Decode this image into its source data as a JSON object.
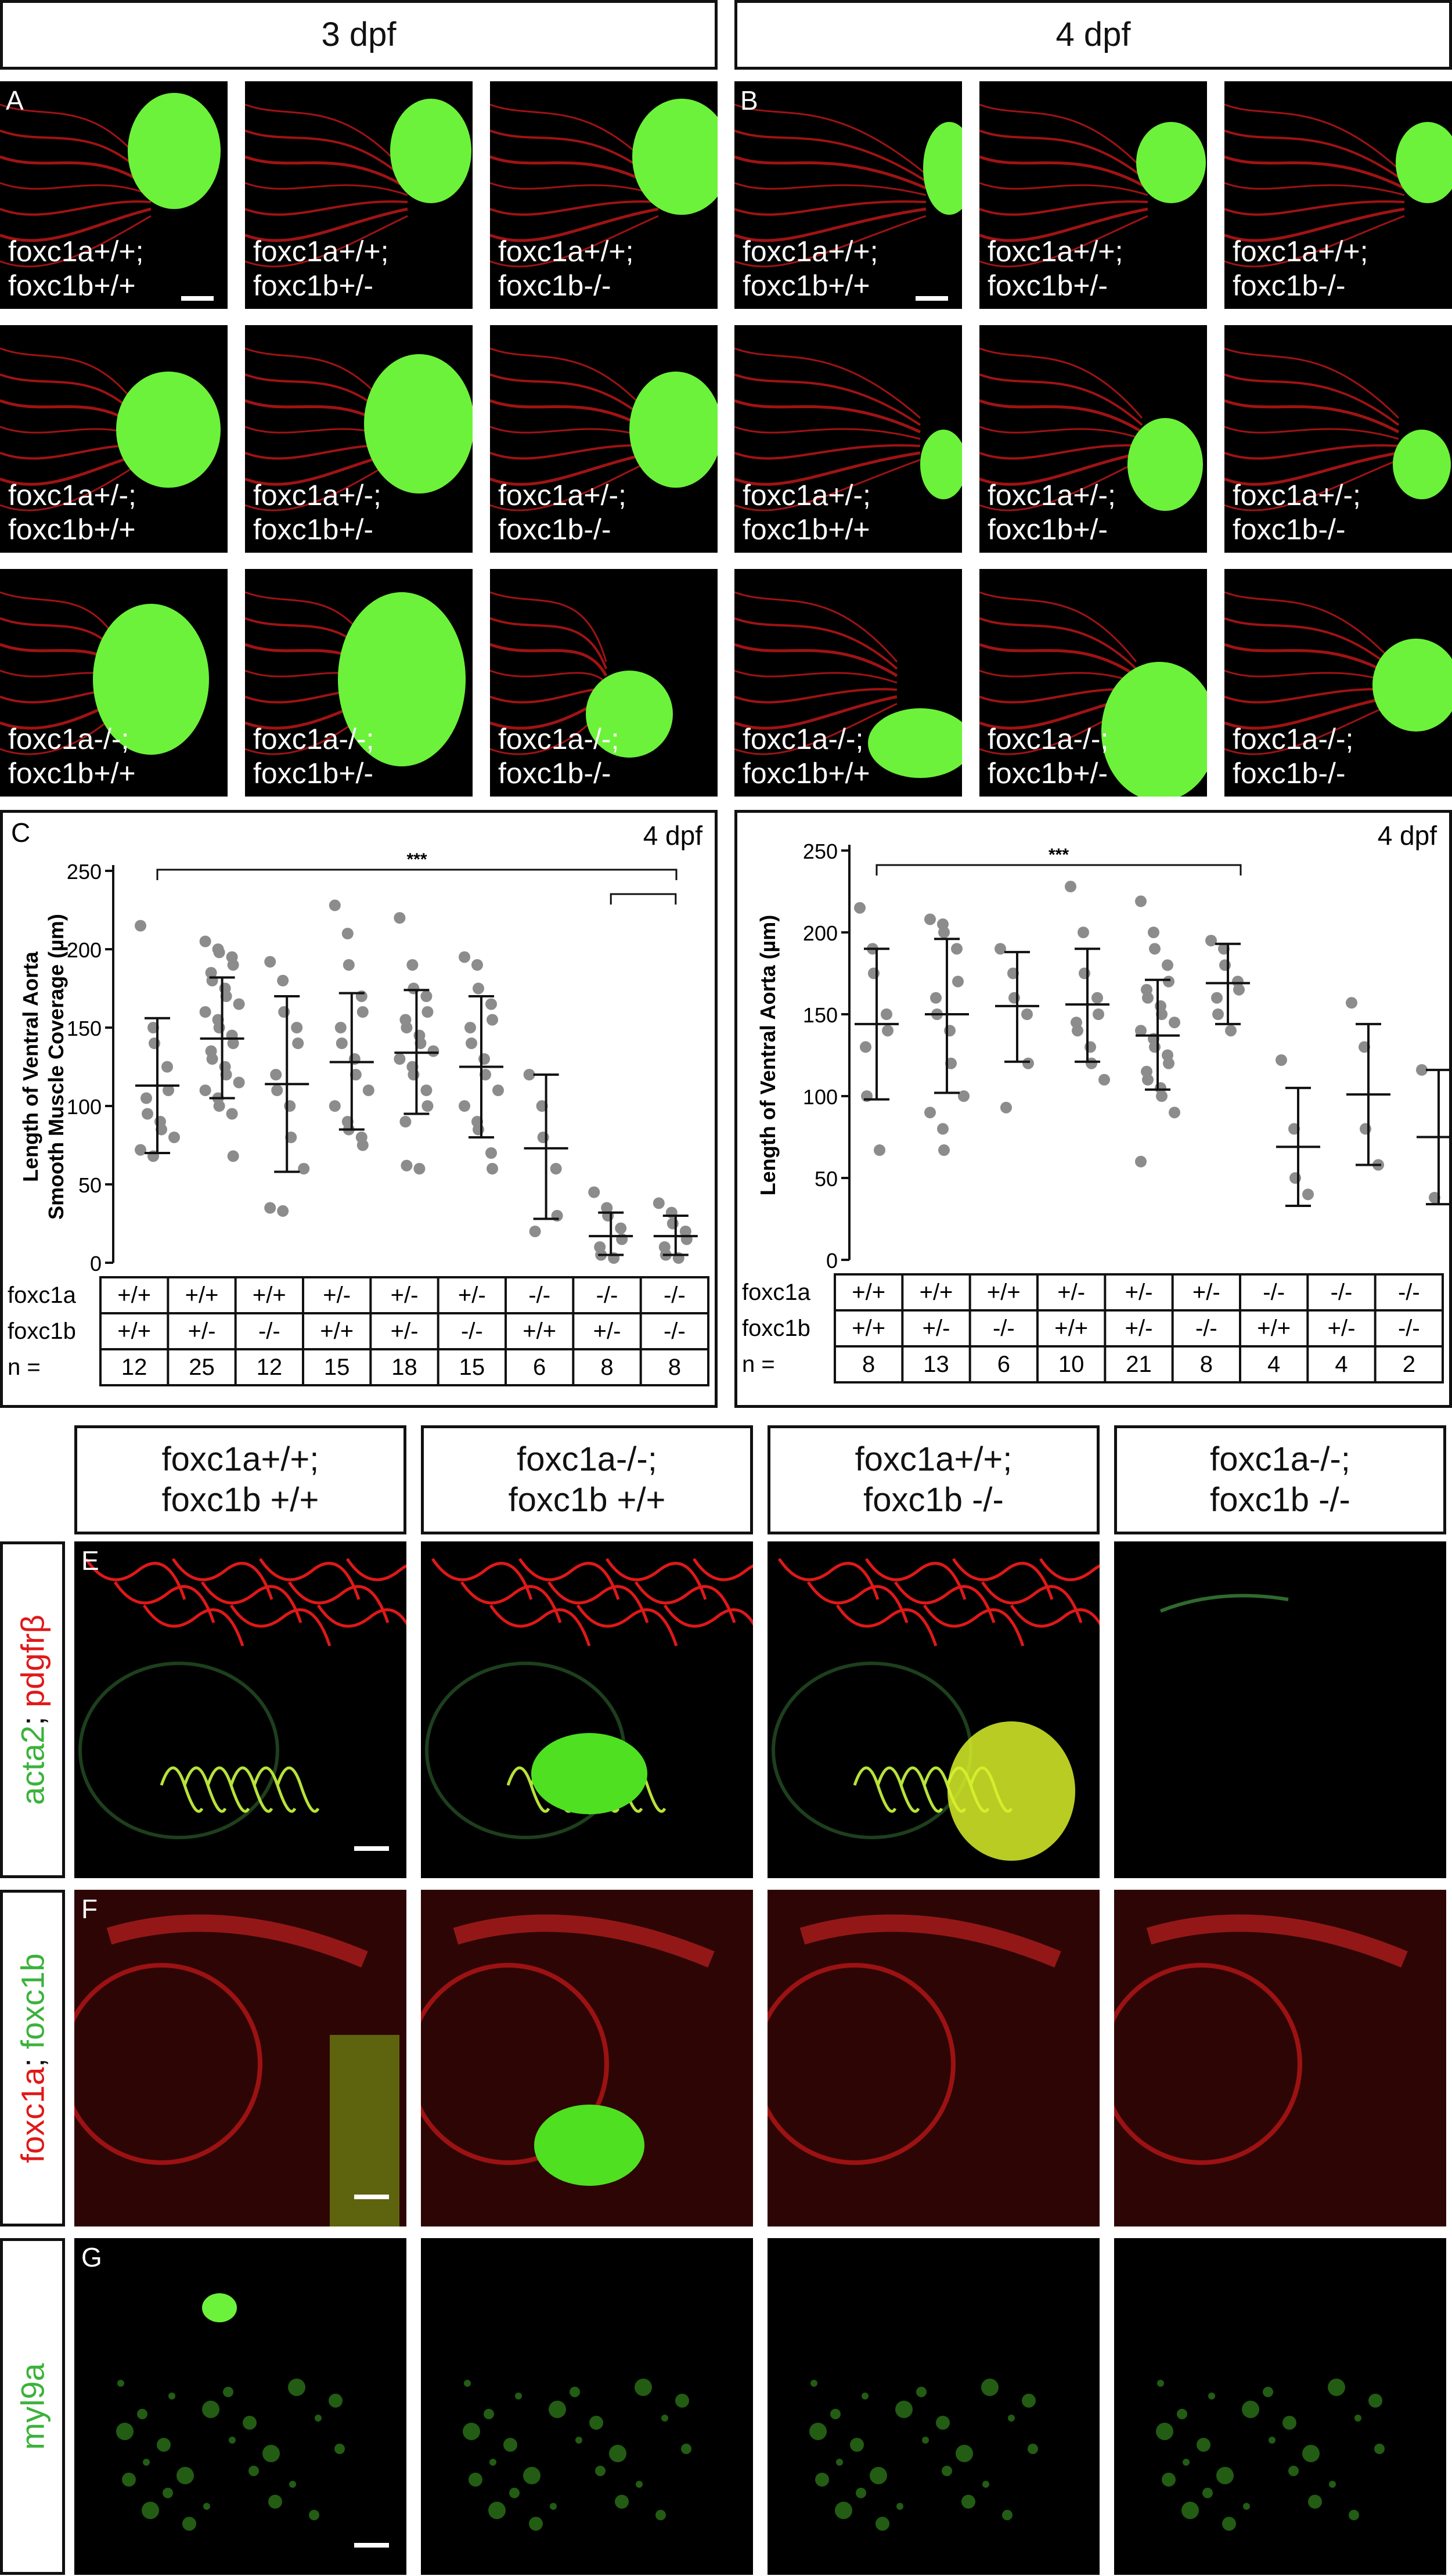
{
  "top_headers": [
    "3 dpf",
    "4 dpf"
  ],
  "panels": {
    "A": {
      "letter": "A"
    },
    "B": {
      "letter": "B"
    },
    "C": {
      "letter": "C"
    },
    "E": {
      "letter": "E"
    },
    "F": {
      "letter": "F"
    },
    "G": {
      "letter": "G"
    }
  },
  "genotype_tiles": [
    {
      "a": "foxc1a+/+;",
      "b": "foxc1b+/+"
    },
    {
      "a": "foxc1a+/+;",
      "b": "foxc1b+/-"
    },
    {
      "a": "foxc1a+/+;",
      "b": "foxc1b-/-"
    },
    {
      "a": "foxc1a+/-;",
      "b": "foxc1b+/+"
    },
    {
      "a": "foxc1a+/-;",
      "b": "foxc1b+/-"
    },
    {
      "a": "foxc1a+/-;",
      "b": "foxc1b-/-"
    },
    {
      "a": "foxc1a-/-;",
      "b": "foxc1b+/+"
    },
    {
      "a": "foxc1a-/-;",
      "b": "foxc1b+/-"
    },
    {
      "a": "foxc1a-/-;",
      "b": "foxc1b-/-"
    }
  ],
  "bottom_headers": [
    {
      "a": "foxc1a+/+;",
      "b": "foxc1b +/+"
    },
    {
      "a": "foxc1a-/-;",
      "b": "foxc1b +/+"
    },
    {
      "a": "foxc1a+/+;",
      "b": "foxc1b -/-"
    },
    {
      "a": "foxc1a-/-;",
      "b": "foxc1b -/-"
    }
  ],
  "row_labels": {
    "E": {
      "g": "acta2",
      "sep": "; ",
      "r": "pdgfrβ"
    },
    "F": {
      "r": "foxc1a",
      "sep": "; ",
      "g": "foxc1b"
    },
    "G": {
      "g": "myl9a"
    }
  },
  "colors": {
    "green": "#3bb23b",
    "red": "#e01818",
    "dot": "#8c8c8c"
  },
  "chart_data": [
    {
      "type": "scatter",
      "title": "4 dpf",
      "ylabel": [
        "Length of Ventral Aorta",
        "Smooth Muscle Coverage (µm)"
      ],
      "ylim": [
        0,
        250
      ],
      "yticks": [
        0,
        50,
        100,
        150,
        200,
        250
      ],
      "significance": "***",
      "table_rows": [
        {
          "label": "foxc1a",
          "values": [
            "+/+",
            "+/+",
            "+/+",
            "+/-",
            "+/-",
            "+/-",
            "-/-",
            "-/-",
            "-/-"
          ]
        },
        {
          "label": "foxc1b",
          "values": [
            "+/+",
            "+/-",
            "-/-",
            "+/+",
            "+/-",
            "-/-",
            "+/+",
            "+/-",
            "-/-"
          ]
        },
        {
          "label": "n =",
          "values": [
            "12",
            "25",
            "12",
            "15",
            "18",
            "15",
            "6",
            "8",
            "8"
          ]
        }
      ],
      "series": [
        {
          "mean": 113,
          "sd": [
            70,
            156
          ],
          "points": [
            215,
            150,
            140,
            125,
            110,
            105,
            95,
            90,
            85,
            80,
            72,
            68
          ]
        },
        {
          "mean": 143,
          "sd": [
            105,
            182
          ],
          "points": [
            205,
            200,
            198,
            195,
            190,
            185,
            180,
            175,
            170,
            165,
            160,
            155,
            150,
            145,
            140,
            135,
            130,
            125,
            120,
            115,
            110,
            105,
            100,
            95,
            68
          ]
        },
        {
          "mean": 114,
          "sd": [
            58,
            170
          ],
          "points": [
            192,
            180,
            160,
            150,
            140,
            120,
            110,
            100,
            80,
            60,
            35,
            33
          ]
        },
        {
          "mean": 128,
          "sd": [
            85,
            172
          ],
          "points": [
            228,
            210,
            190,
            170,
            160,
            150,
            140,
            130,
            120,
            110,
            100,
            90,
            85,
            80,
            75
          ]
        },
        {
          "mean": 134,
          "sd": [
            95,
            174
          ],
          "points": [
            220,
            190,
            175,
            170,
            160,
            155,
            150,
            145,
            140,
            135,
            130,
            125,
            120,
            110,
            100,
            90,
            62,
            60
          ]
        },
        {
          "mean": 125,
          "sd": [
            80,
            170
          ],
          "points": [
            195,
            190,
            175,
            165,
            155,
            150,
            140,
            130,
            120,
            110,
            100,
            90,
            85,
            70,
            60
          ]
        },
        {
          "mean": 73,
          "sd": [
            28,
            120
          ],
          "points": [
            120,
            100,
            80,
            60,
            30,
            20
          ]
        },
        {
          "mean": 17,
          "sd": [
            5,
            32
          ],
          "points": [
            45,
            35,
            30,
            22,
            15,
            10,
            5,
            3
          ]
        },
        {
          "mean": 17,
          "sd": [
            5,
            30
          ],
          "points": [
            38,
            32,
            25,
            20,
            15,
            10,
            5,
            3
          ]
        }
      ]
    },
    {
      "type": "scatter",
      "title": "4 dpf",
      "ylabel": [
        "Length of Ventral Aorta (µm)"
      ],
      "ylim": [
        0,
        250
      ],
      "yticks": [
        0,
        50,
        100,
        150,
        200,
        250
      ],
      "significance": "***",
      "table_rows": [
        {
          "label": "foxc1a",
          "values": [
            "+/+",
            "+/+",
            "+/+",
            "+/-",
            "+/-",
            "+/-",
            "-/-",
            "-/-",
            "-/-"
          ]
        },
        {
          "label": "foxc1b",
          "values": [
            "+/+",
            "+/-",
            "-/-",
            "+/+",
            "+/-",
            "-/-",
            "+/+",
            "+/-",
            "-/-"
          ]
        },
        {
          "label": "n =",
          "values": [
            "8",
            "13",
            "6",
            "10",
            "21",
            "8",
            "4",
            "4",
            "2"
          ]
        }
      ],
      "series": [
        {
          "mean": 144,
          "sd": [
            98,
            190
          ],
          "points": [
            215,
            190,
            175,
            150,
            140,
            130,
            100,
            67
          ]
        },
        {
          "mean": 150,
          "sd": [
            102,
            196
          ],
          "points": [
            208,
            205,
            200,
            190,
            170,
            160,
            150,
            140,
            120,
            100,
            90,
            80,
            67
          ]
        },
        {
          "mean": 155,
          "sd": [
            121,
            188
          ],
          "points": [
            190,
            175,
            160,
            150,
            120,
            93
          ]
        },
        {
          "mean": 156,
          "sd": [
            121,
            190
          ],
          "points": [
            228,
            200,
            175,
            160,
            150,
            145,
            140,
            130,
            120,
            110
          ]
        },
        {
          "mean": 137,
          "sd": [
            104,
            171
          ],
          "points": [
            219,
            200,
            190,
            180,
            170,
            165,
            160,
            155,
            150,
            145,
            140,
            135,
            130,
            125,
            120,
            115,
            110,
            105,
            100,
            90,
            60
          ]
        },
        {
          "mean": 169,
          "sd": [
            144,
            193
          ],
          "points": [
            195,
            190,
            180,
            170,
            165,
            160,
            150,
            140
          ]
        },
        {
          "mean": 69,
          "sd": [
            33,
            105
          ],
          "points": [
            122,
            80,
            50,
            40
          ]
        },
        {
          "mean": 101,
          "sd": [
            58,
            144
          ],
          "points": [
            157,
            130,
            80,
            58
          ]
        },
        {
          "mean": 75,
          "sd": [
            34,
            116
          ],
          "points": [
            116,
            38
          ]
        }
      ]
    }
  ]
}
